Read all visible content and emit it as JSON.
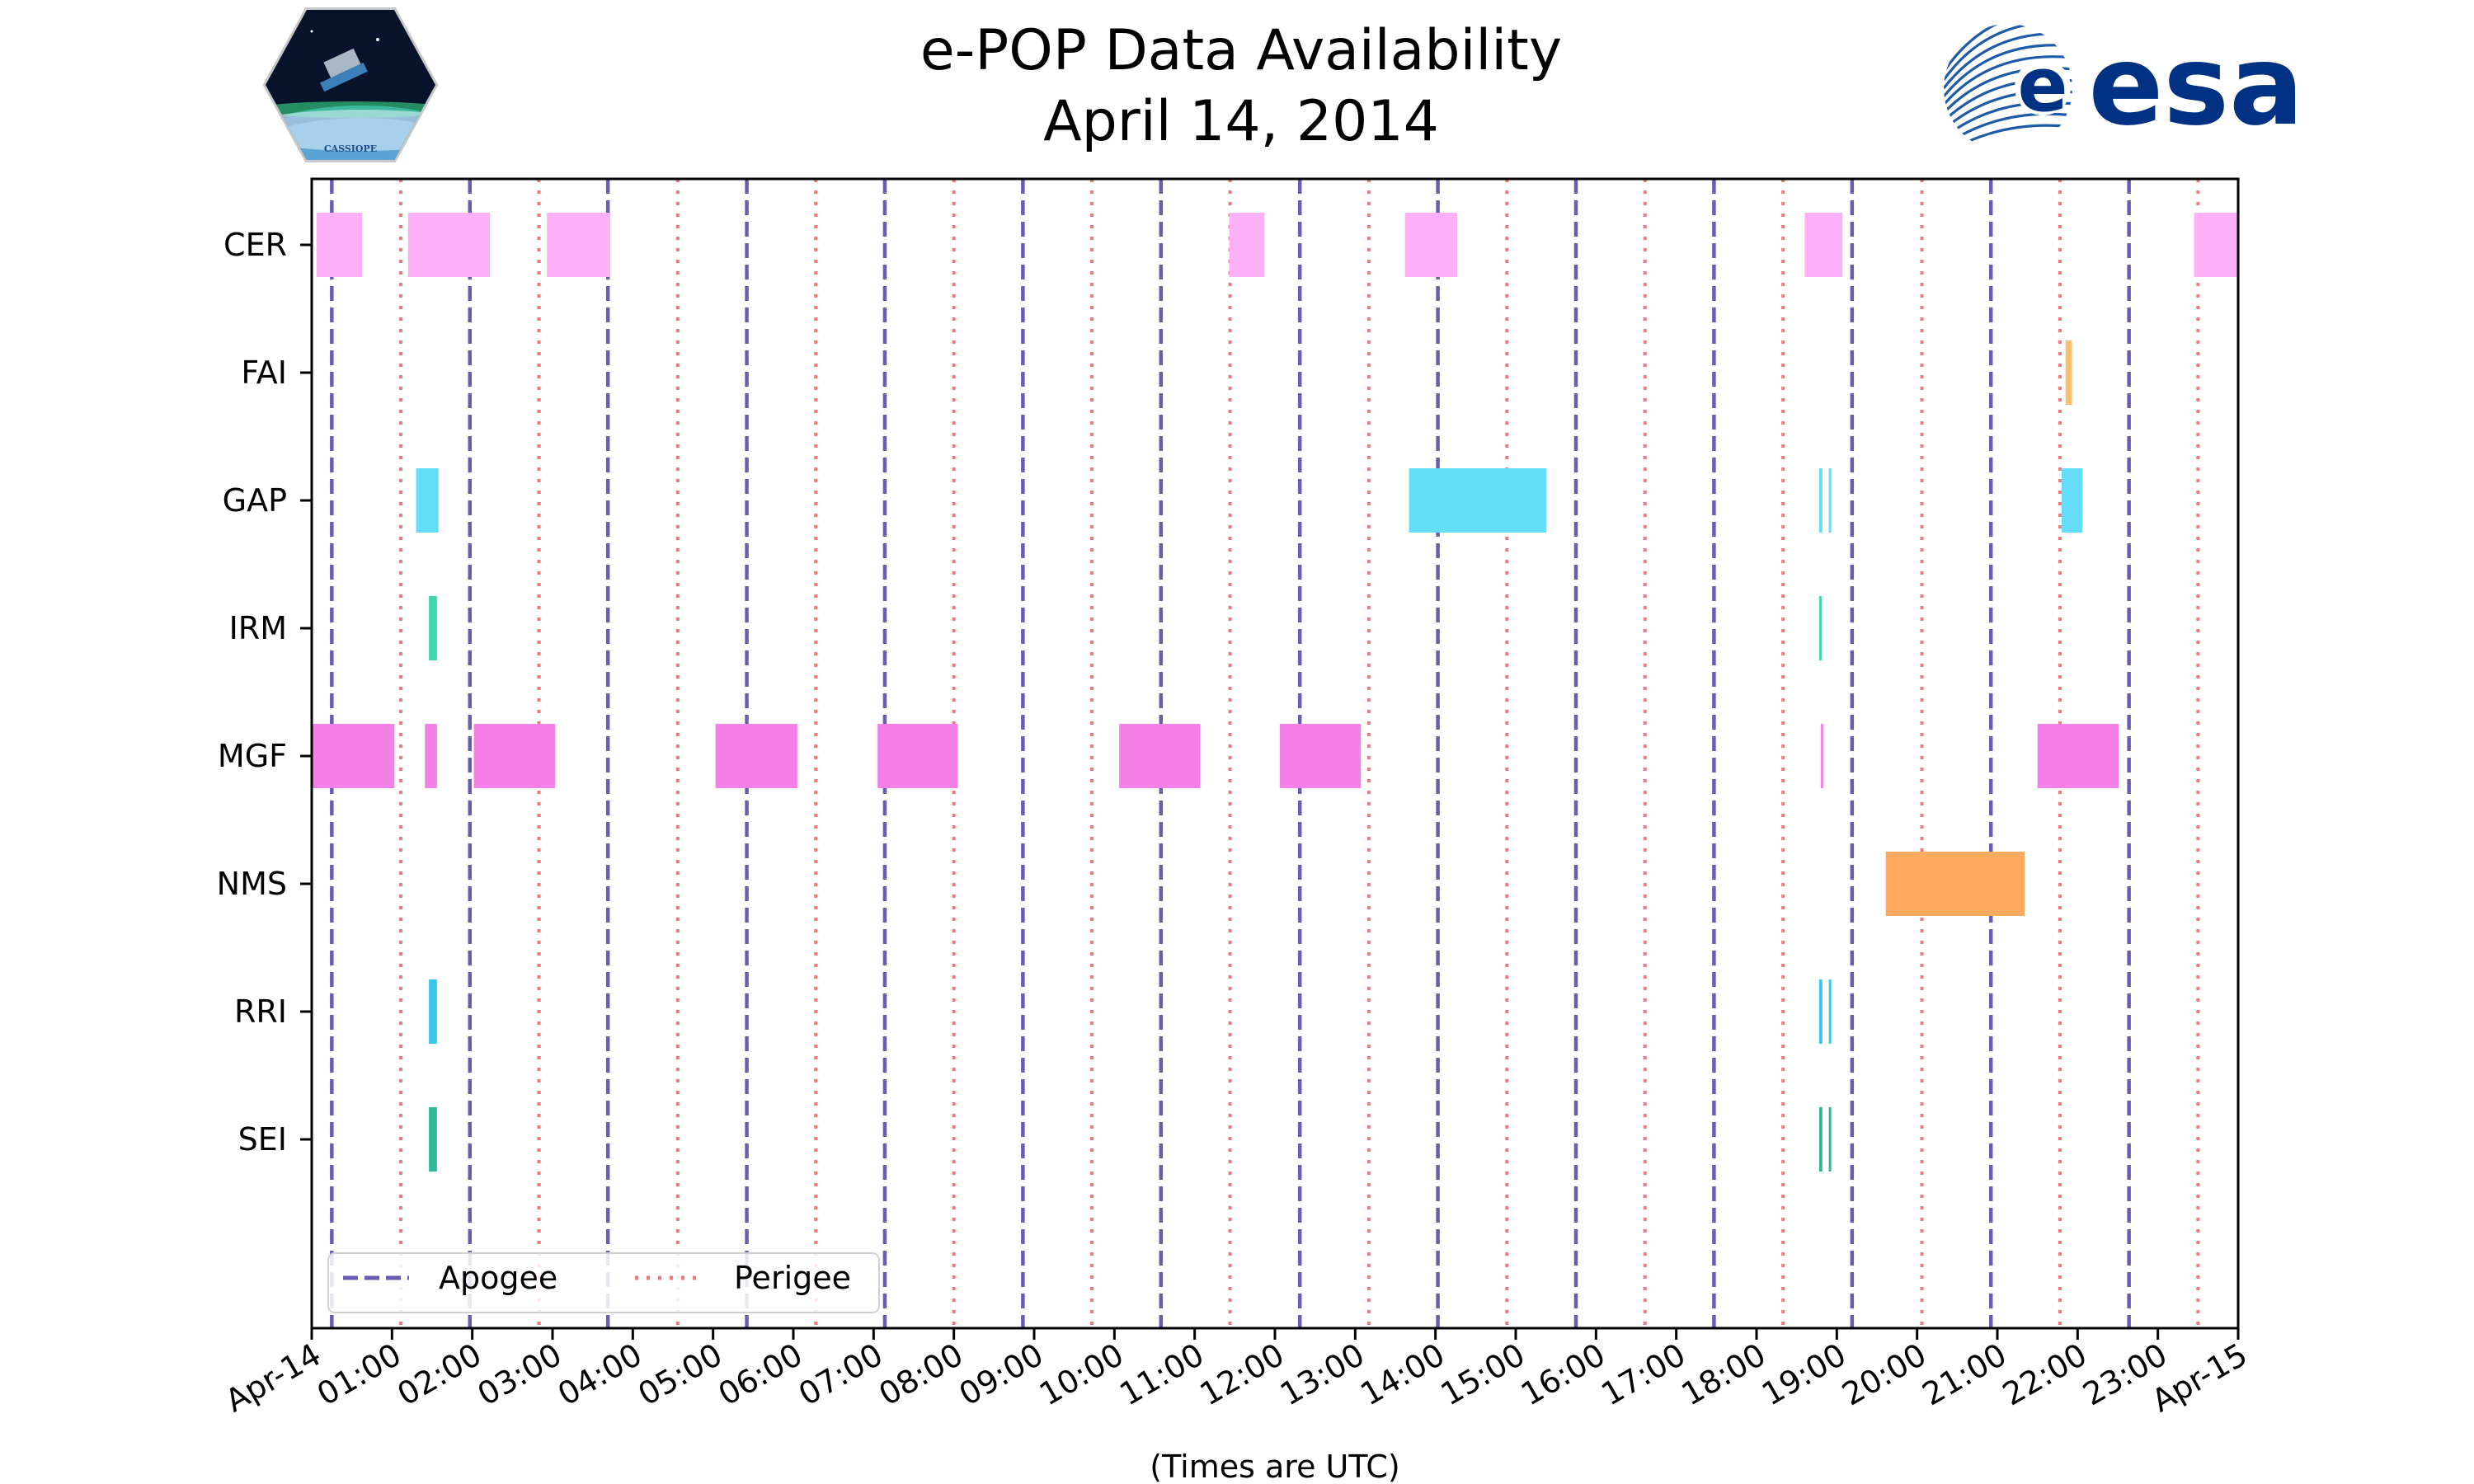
{
  "chart_data": {
    "type": "timeline",
    "title": "e-POP Data Availability",
    "subtitle": "April 14, 2014",
    "xlabel": "(Times are UTC)",
    "xlim_hours": [
      0,
      24
    ],
    "x_tick_labels": [
      "Apr-14",
      "01:00",
      "02:00",
      "03:00",
      "04:00",
      "05:00",
      "06:00",
      "07:00",
      "08:00",
      "09:00",
      "10:00",
      "11:00",
      "12:00",
      "13:00",
      "14:00",
      "15:00",
      "16:00",
      "17:00",
      "18:00",
      "19:00",
      "20:00",
      "21:00",
      "22:00",
      "23:00",
      "Apr-15"
    ],
    "instruments": [
      "CER",
      "FAI",
      "GAP",
      "IRM",
      "MGF",
      "NMS",
      "RRI",
      "SEI"
    ],
    "colors": {
      "CER": "#fcb0f5",
      "FAI": "#fbc06e",
      "GAP": "#64def8",
      "IRM": "#3fd8ae",
      "MGF": "#f37fe7",
      "NMS": "#fdaa5f",
      "RRI": "#38c7ec",
      "SEI": "#2fb897",
      "apogee": "#6a5bb5",
      "perigee": "#f07878"
    },
    "apogee_hours": [
      0.25,
      1.97,
      3.69,
      5.42,
      7.14,
      8.86,
      10.58,
      12.31,
      14.03,
      15.75,
      17.47,
      19.19,
      20.92,
      22.64
    ],
    "perigee_hours": [
      1.11,
      2.83,
      4.56,
      6.28,
      8.0,
      9.72,
      11.44,
      13.17,
      14.89,
      16.61,
      18.33,
      20.06,
      21.78,
      23.5
    ],
    "segments": {
      "CER": [
        [
          0.06,
          0.63
        ],
        [
          1.2,
          2.22
        ],
        [
          2.93,
          3.72
        ],
        [
          11.43,
          11.87
        ],
        [
          13.62,
          14.27
        ],
        [
          18.6,
          19.07
        ],
        [
          23.45,
          24.0
        ]
      ],
      "FAI": [
        [
          21.85,
          21.93
        ]
      ],
      "GAP": [
        [
          1.3,
          1.58
        ],
        [
          13.67,
          15.38
        ],
        [
          18.78,
          18.82
        ],
        [
          18.9,
          18.93
        ],
        [
          21.8,
          22.06
        ]
      ],
      "IRM": [
        [
          1.46,
          1.56
        ],
        [
          18.78,
          18.81
        ]
      ],
      "MGF": [
        [
          0.0,
          1.03
        ],
        [
          1.41,
          1.56
        ],
        [
          2.02,
          3.03
        ],
        [
          5.03,
          6.05
        ],
        [
          7.05,
          8.05
        ],
        [
          10.06,
          11.07
        ],
        [
          12.06,
          13.07
        ],
        [
          18.8,
          18.83
        ],
        [
          21.5,
          22.51
        ]
      ],
      "NMS": [
        [
          19.61,
          21.34
        ]
      ],
      "RRI": [
        [
          1.46,
          1.56
        ],
        [
          18.78,
          18.82
        ],
        [
          18.9,
          18.93
        ]
      ],
      "SEI": [
        [
          1.46,
          1.56
        ],
        [
          18.78,
          18.82
        ],
        [
          18.9,
          18.93
        ]
      ]
    },
    "legend": {
      "position": "lower-left",
      "entries": [
        "Apogee",
        "Perigee"
      ]
    }
  },
  "logos": {
    "left_caption": "CASSIOPE",
    "right_text": "esa"
  }
}
